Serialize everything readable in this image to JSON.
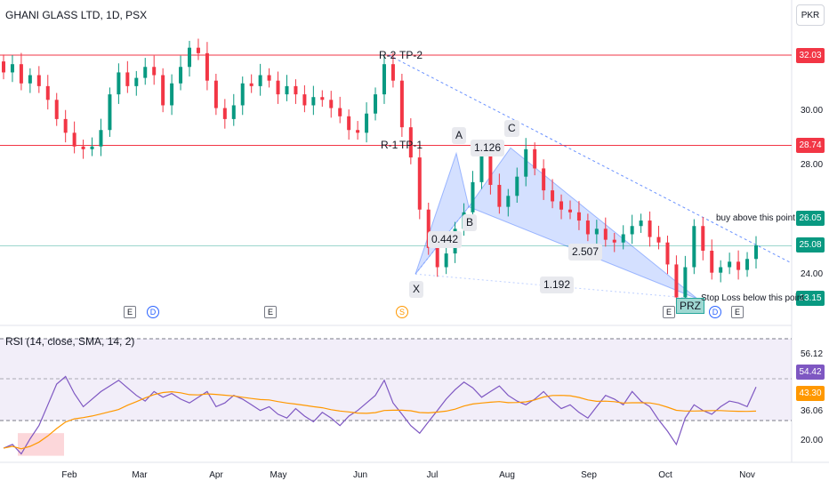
{
  "header": {
    "symbol_title": "GHANI GLASS LTD, 1D, PSX",
    "currency": "PKR"
  },
  "price_axis": {
    "ticks": [
      "30.00",
      "28.00",
      "24.00"
    ],
    "tags": [
      {
        "value": "32.03",
        "color": "#f23645"
      },
      {
        "value": "28.74",
        "color": "#f23645"
      },
      {
        "value": "26.05",
        "color": "#089981"
      },
      {
        "value": "25.08",
        "color": "#089981"
      },
      {
        "value": "23.15",
        "color": "#089981"
      }
    ]
  },
  "rsi_axis": {
    "ticks": [
      "56.12",
      "36.06",
      "20.00"
    ],
    "tags": [
      {
        "value": "54.42",
        "color": "#7e57c2"
      },
      {
        "value": "43.30",
        "color": "#ff9800"
      }
    ]
  },
  "time_axis": [
    "Feb",
    "Mar",
    "Apr",
    "May",
    "Jun",
    "Jul",
    "Aug",
    "Sep",
    "Oct",
    "Nov"
  ],
  "rsi": {
    "title": "RSI (14, close, SMA, 14, 2)",
    "upper_band": 70,
    "lower_band": 30,
    "ylim": [
      15,
      80
    ]
  },
  "annotations": {
    "r2": "R-2",
    "tp2": "TP-2",
    "r1": "R-1",
    "tp1": "TP-1",
    "A": "A",
    "B": "B",
    "C": "C",
    "X": "X",
    "ratio_xb": "0.442",
    "ratio_ac": "1.126",
    "ratio_bd": "2.507",
    "ratio_xd": "1.192",
    "prz": "PRZ",
    "buy_note": "buy above this point",
    "stop_note": "Stop Loss below this point"
  },
  "events": [
    {
      "type": "E"
    },
    {
      "type": "D"
    },
    {
      "type": "E"
    },
    {
      "type": "S"
    },
    {
      "type": "E"
    },
    {
      "type": "D"
    },
    {
      "type": "E"
    }
  ],
  "chart_data": {
    "type": "candlestick",
    "title": "GHANI GLASS LTD, 1D, PSX",
    "ylim": [
      22.5,
      33.5
    ],
    "resistance_levels": [
      32.03,
      28.74
    ],
    "support_level": 25.08,
    "last_price": 25.08,
    "harmonic_pattern": {
      "X": 24.05,
      "A": 28.45,
      "B": 26.5,
      "C": 28.65,
      "D": 23.15
    },
    "close_series": [
      31.4,
      31.7,
      31.0,
      31.3,
      30.9,
      30.4,
      29.7,
      29.2,
      28.7,
      28.6,
      28.7,
      29.3,
      30.6,
      31.4,
      30.9,
      31.2,
      31.6,
      31.3,
      30.2,
      31.0,
      31.6,
      32.3,
      32.1,
      31.1,
      30.1,
      29.7,
      30.2,
      31.0,
      30.9,
      31.3,
      31.1,
      30.6,
      30.9,
      30.6,
      30.2,
      30.5,
      30.4,
      30.1,
      29.8,
      29.3,
      29.2,
      29.9,
      30.6,
      31.7,
      31.1,
      29.4,
      28.3,
      26.4,
      25.0,
      24.3,
      24.8,
      25.7,
      26.3,
      27.4,
      28.4,
      27.3,
      26.5,
      26.9,
      27.6,
      28.6,
      27.9,
      27.1,
      26.7,
      26.4,
      26.3,
      26.0,
      25.5,
      25.7,
      25.3,
      25.2,
      25.5,
      25.8,
      26.0,
      25.4,
      25.2,
      24.4,
      23.2,
      24.3,
      25.8,
      24.9,
      24.1,
      24.3,
      24.5,
      24.2,
      24.6,
      25.1
    ],
    "rsi_series": [
      22,
      24,
      19,
      27,
      34,
      45,
      56,
      60,
      51,
      44,
      48,
      52,
      55,
      58,
      54,
      50,
      47,
      52,
      49,
      51,
      48,
      46,
      49,
      52,
      44,
      46,
      50,
      48,
      45,
      42,
      44,
      40,
      38,
      43,
      39,
      36,
      41,
      38,
      34,
      39,
      42,
      46,
      50,
      58,
      46,
      40,
      34,
      30,
      36,
      42,
      48,
      53,
      57,
      54,
      49,
      52,
      55,
      50,
      47,
      45,
      48,
      52,
      47,
      43,
      45,
      41,
      38,
      44,
      50,
      48,
      45,
      52,
      47,
      44,
      37,
      31,
      24,
      38,
      45,
      42,
      40,
      44,
      47,
      46,
      44,
      54.42
    ],
    "rsi_sma_last": 43.3
  }
}
